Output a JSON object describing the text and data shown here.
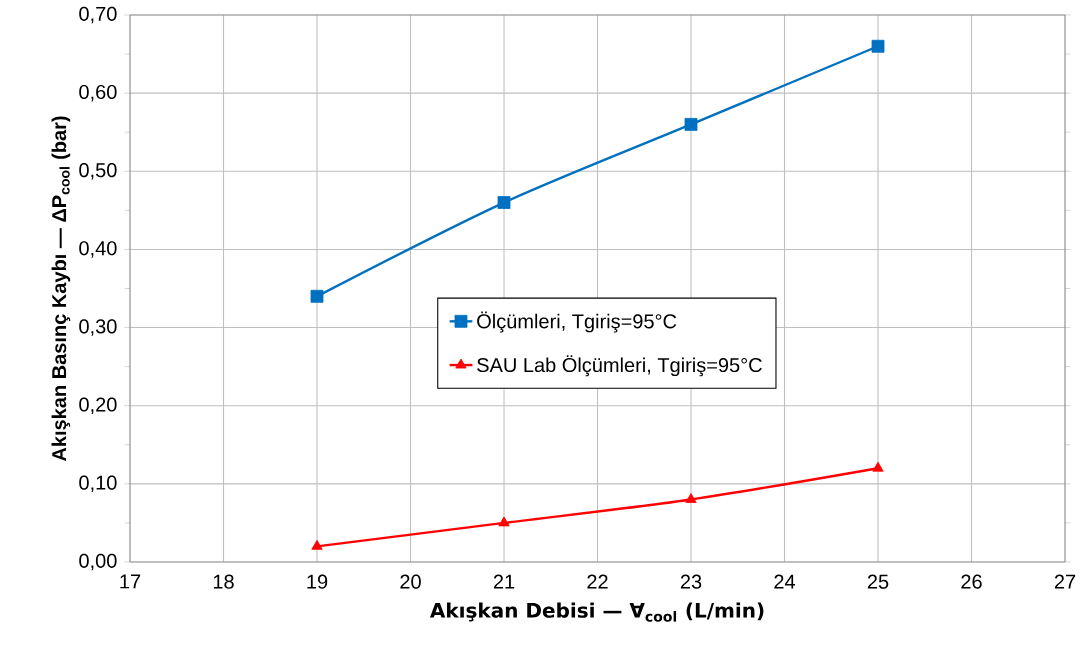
{
  "chart_data": {
    "type": "line",
    "xlabel": "Akışkan Debisi — ∀$_{cool}$ (L/min)",
    "ylabel": "Akışkan Basınç Kaybı — ΔP$_{cool}$ (bar)",
    "x": [
      19,
      21,
      23,
      25
    ],
    "series": [
      {
        "name": "Ölçümleri, Tgiriş=95°C",
        "color": "#0070c0",
        "marker": "square",
        "values": [
          0.34,
          0.46,
          0.56,
          0.66
        ]
      },
      {
        "name": "SAU Lab Ölçümleri, Tgiriş=95°C",
        "color": "#ff0000",
        "marker": "triangle",
        "values": [
          0.02,
          0.05,
          0.08,
          0.12
        ]
      }
    ],
    "xlim": [
      17,
      27
    ],
    "xticks": [
      17,
      18,
      19,
      20,
      21,
      22,
      23,
      24,
      25,
      26,
      27
    ],
    "ylim": [
      0,
      0.7
    ],
    "yticks": [
      {
        "value": 0,
        "label": "0,00"
      },
      {
        "value": 0.1,
        "label": "0,10"
      },
      {
        "value": 0.2,
        "label": "0,20"
      },
      {
        "value": 0.3,
        "label": "0,30"
      },
      {
        "value": 0.4,
        "label": "0,40"
      },
      {
        "value": 0.5,
        "label": "0,50"
      },
      {
        "value": 0.6,
        "label": "0,60"
      },
      {
        "value": 0.7,
        "label": "0,70"
      }
    ],
    "grid": true,
    "legend": "center",
    "line_style": "solid"
  }
}
